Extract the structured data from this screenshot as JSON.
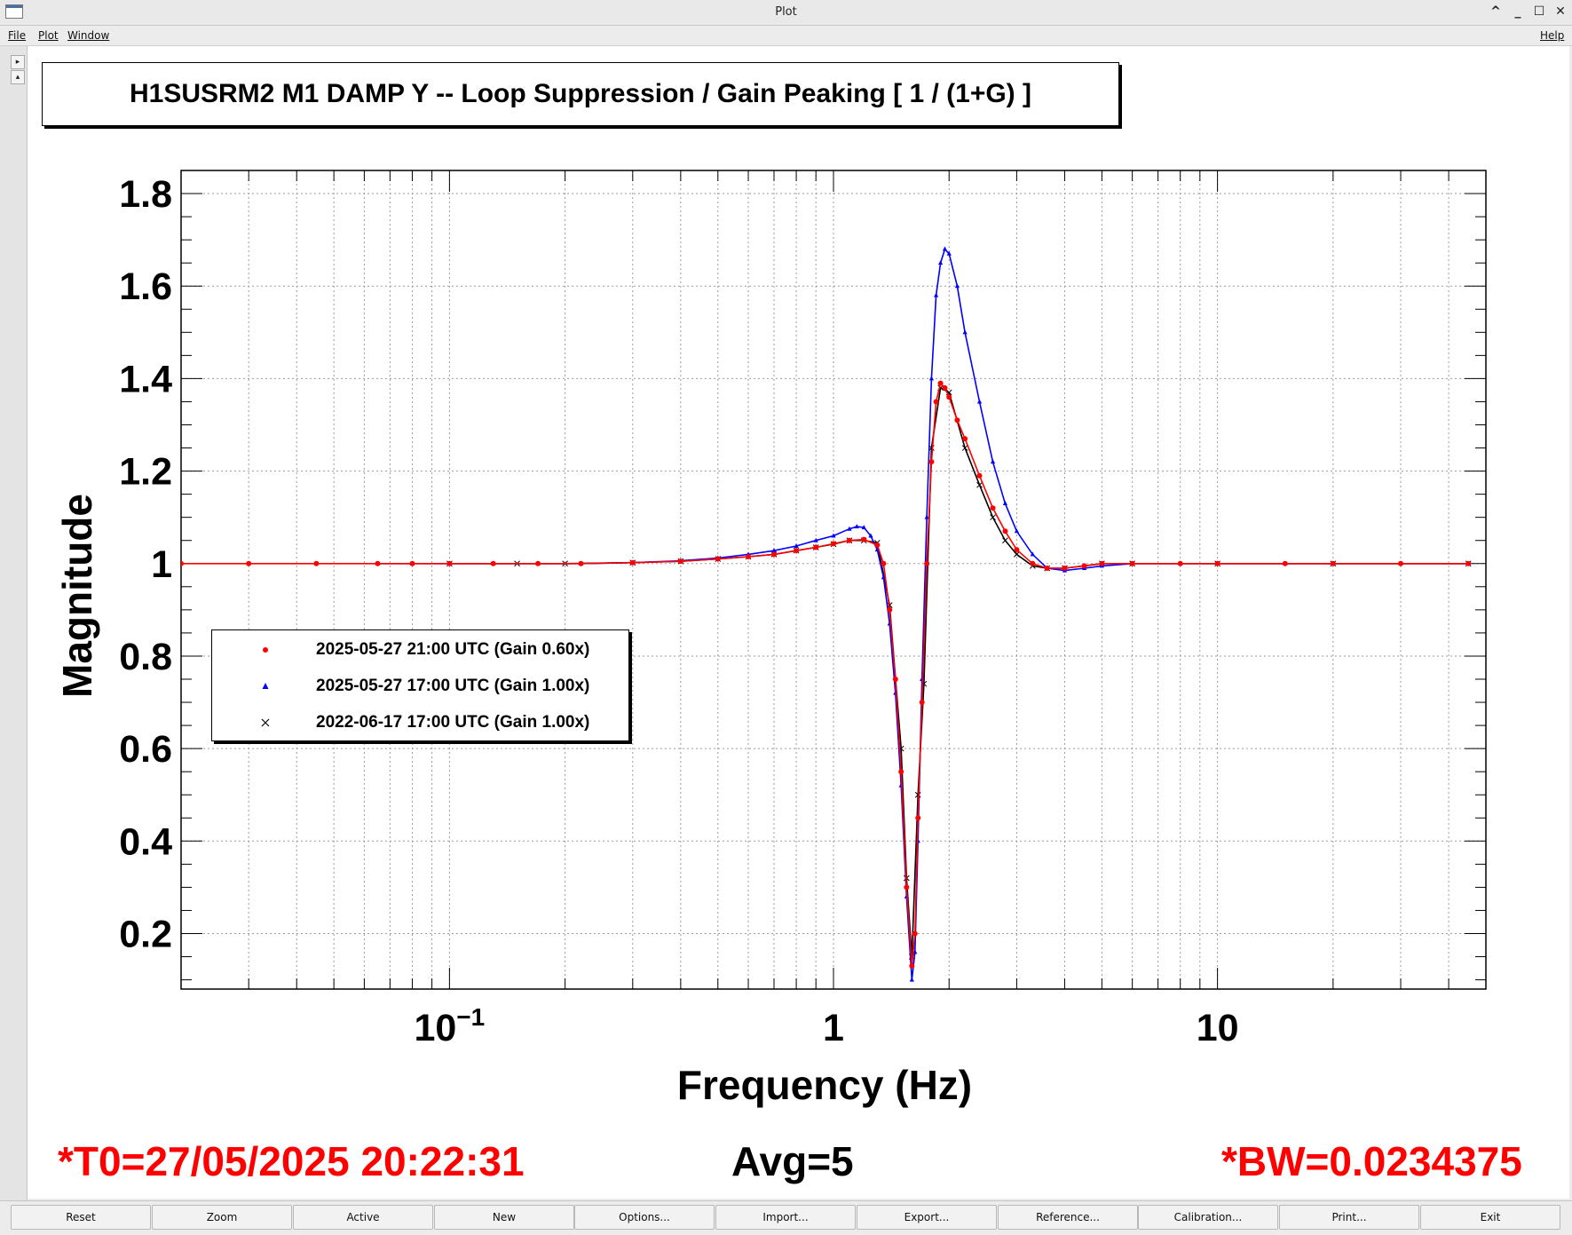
{
  "window": {
    "title": "Plot",
    "controls": [
      "^",
      "_",
      "☐",
      "✕"
    ]
  },
  "menu": {
    "file": "File",
    "plot": "Plot",
    "window": "Window",
    "help": "Help"
  },
  "sidebar": {
    "expand": "▸",
    "collapse": "▴"
  },
  "colors": {
    "red": "#ff0000",
    "blue": "#0000ff",
    "black": "#000000"
  },
  "chart_data": {
    "type": "line",
    "title": "H1SUSRM2 M1 DAMP Y -- Loop Suppression / Gain Peaking [ 1 / (1+G) ]",
    "xlabel": "Frequency (Hz)",
    "ylabel": "Magnitude",
    "x_scale": "log",
    "xlim": [
      0.02,
      50
    ],
    "ylim": [
      0.08,
      1.85
    ],
    "grid": true,
    "legend_position": "center-left",
    "x_ticks": [
      {
        "value": 0.1,
        "base": "10",
        "exp": "−1"
      },
      {
        "value": 1,
        "label": "1"
      },
      {
        "value": 10,
        "label": "10"
      }
    ],
    "y_ticks": [
      {
        "value": 0.2,
        "label": "0.2"
      },
      {
        "value": 0.4,
        "label": "0.4"
      },
      {
        "value": 0.6,
        "label": "0.6"
      },
      {
        "value": 0.8,
        "label": "0.8"
      },
      {
        "value": 1.0,
        "label": "1"
      },
      {
        "value": 1.2,
        "label": "1.2"
      },
      {
        "value": 1.4,
        "label": "1.4"
      },
      {
        "value": 1.6,
        "label": "1.6"
      },
      {
        "value": 1.8,
        "label": "1.8"
      }
    ],
    "series": [
      {
        "name": "2025-05-27 21:00 UTC (Gain 0.60x)",
        "color": "#ff0000",
        "marker": "dot",
        "x": [
          0.02,
          0.03,
          0.045,
          0.065,
          0.08,
          0.1,
          0.13,
          0.17,
          0.22,
          0.3,
          0.4,
          0.5,
          0.6,
          0.7,
          0.8,
          0.9,
          1.0,
          1.1,
          1.2,
          1.3,
          1.35,
          1.4,
          1.45,
          1.5,
          1.55,
          1.6,
          1.63,
          1.66,
          1.7,
          1.75,
          1.8,
          1.85,
          1.9,
          1.95,
          2.0,
          2.1,
          2.2,
          2.4,
          2.6,
          2.8,
          3.0,
          3.3,
          3.6,
          4.0,
          4.5,
          5.0,
          6.0,
          8.0,
          10,
          15,
          20,
          30,
          45
        ],
        "y": [
          1.0,
          1.0,
          1.0,
          1.0,
          1.0,
          1.0,
          1.0,
          1.0,
          1.0,
          1.002,
          1.005,
          1.01,
          1.015,
          1.02,
          1.028,
          1.035,
          1.043,
          1.05,
          1.052,
          1.04,
          1.0,
          0.9,
          0.75,
          0.55,
          0.3,
          0.13,
          0.2,
          0.45,
          0.7,
          1.0,
          1.22,
          1.35,
          1.39,
          1.38,
          1.36,
          1.31,
          1.27,
          1.19,
          1.12,
          1.07,
          1.03,
          1.0,
          0.99,
          0.99,
          0.995,
          1.0,
          1.0,
          1.0,
          1.0,
          1.0,
          1.0,
          1.0,
          1.0
        ]
      },
      {
        "name": "2025-05-27 17:00 UTC (Gain 1.00x)",
        "color": "#0000ff",
        "marker": "triangle",
        "x": [
          0.065,
          0.08,
          0.1,
          0.13,
          0.17,
          0.22,
          0.3,
          0.4,
          0.5,
          0.6,
          0.7,
          0.8,
          0.9,
          1.0,
          1.1,
          1.15,
          1.2,
          1.25,
          1.3,
          1.35,
          1.4,
          1.45,
          1.5,
          1.55,
          1.6,
          1.63,
          1.66,
          1.7,
          1.75,
          1.8,
          1.85,
          1.9,
          1.95,
          2.0,
          2.1,
          2.2,
          2.4,
          2.6,
          2.8,
          3.0,
          3.3,
          3.6,
          4.0,
          4.5,
          5.0,
          6.0,
          8.0,
          10,
          15,
          20,
          30,
          45
        ],
        "y": [
          1.0,
          1.0,
          1.0,
          1.0,
          1.0,
          1.0,
          1.002,
          1.006,
          1.012,
          1.02,
          1.028,
          1.038,
          1.05,
          1.06,
          1.075,
          1.08,
          1.078,
          1.06,
          1.03,
          0.97,
          0.87,
          0.72,
          0.52,
          0.28,
          0.1,
          0.16,
          0.4,
          0.75,
          1.1,
          1.4,
          1.58,
          1.65,
          1.68,
          1.67,
          1.6,
          1.5,
          1.35,
          1.22,
          1.13,
          1.07,
          1.02,
          0.99,
          0.985,
          0.99,
          0.995,
          1.0,
          1.0,
          1.0,
          1.0,
          1.0,
          1.0,
          1.0
        ]
      },
      {
        "name": "2022-06-17 17:00 UTC (Gain 1.00x)",
        "color": "#000000",
        "marker": "cross",
        "x": [
          0.1,
          0.15,
          0.2,
          0.3,
          0.4,
          0.5,
          0.6,
          0.7,
          0.8,
          0.9,
          1.0,
          1.1,
          1.2,
          1.3,
          1.4,
          1.5,
          1.55,
          1.6,
          1.66,
          1.72,
          1.8,
          1.9,
          2.0,
          2.2,
          2.4,
          2.6,
          2.8,
          3.0,
          3.3,
          3.6,
          4.0,
          5.0,
          6.0,
          10,
          20,
          45
        ],
        "y": [
          1.0,
          1.0,
          1.0,
          1.002,
          1.005,
          1.01,
          1.015,
          1.02,
          1.028,
          1.035,
          1.042,
          1.05,
          1.05,
          1.045,
          0.91,
          0.6,
          0.32,
          0.15,
          0.5,
          0.74,
          1.25,
          1.38,
          1.37,
          1.25,
          1.17,
          1.1,
          1.05,
          1.02,
          0.995,
          0.99,
          0.99,
          1.0,
          1.0,
          1.0,
          1.0,
          1.0
        ]
      }
    ]
  },
  "footer": {
    "t0": "*T0=27/05/2025 20:22:31",
    "avg": "Avg=5",
    "bw": "*BW=0.0234375"
  },
  "buttons": [
    "Reset",
    "Zoom",
    "Active",
    "New",
    "Options...",
    "Import...",
    "Export...",
    "Reference...",
    "Calibration...",
    "Print...",
    "Exit"
  ]
}
